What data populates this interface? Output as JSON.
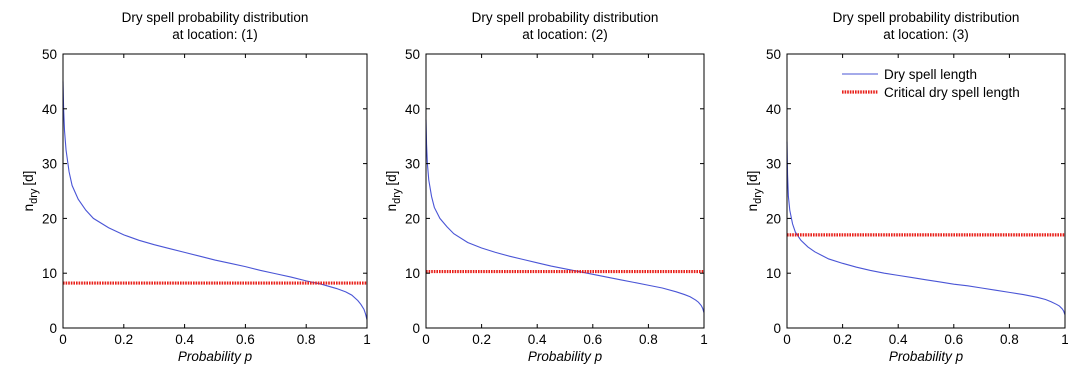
{
  "chart_data": [
    {
      "type": "line",
      "title": [
        "Dry spell probability distribution",
        "at location:   (1)"
      ],
      "xlabel": "Probability p",
      "ylabel": {
        "main": "n",
        "sub": "dry",
        "unit": "[d]"
      },
      "xlim": [
        0,
        1
      ],
      "ylim": [
        0,
        50
      ],
      "xticks": [
        0,
        0.2,
        0.4,
        0.6,
        0.8,
        1
      ],
      "xtick_labels": [
        "0",
        "0.2",
        "0.4",
        "0.6",
        "0.8",
        "1"
      ],
      "yticks": [
        0,
        10,
        20,
        30,
        40,
        50
      ],
      "ytick_labels": [
        "0",
        "10",
        "20",
        "30",
        "40",
        "50"
      ],
      "series": [
        {
          "kind": "curve",
          "color": "#4a55d6",
          "x": [
            0,
            0.002,
            0.005,
            0.01,
            0.02,
            0.03,
            0.05,
            0.075,
            0.1,
            0.15,
            0.2,
            0.25,
            0.3,
            0.35,
            0.4,
            0.45,
            0.5,
            0.55,
            0.6,
            0.65,
            0.7,
            0.75,
            0.8,
            0.85,
            0.9,
            0.93,
            0.95,
            0.97,
            0.98,
            0.99,
            0.995,
            1.0
          ],
          "y": [
            45,
            40,
            36,
            32.5,
            28.5,
            26,
            23.5,
            21.5,
            20,
            18.3,
            17,
            16,
            15.2,
            14.5,
            13.8,
            13.1,
            12.4,
            11.8,
            11.2,
            10.5,
            9.9,
            9.3,
            8.6,
            8.0,
            7.2,
            6.6,
            6.0,
            5.0,
            4.3,
            3.4,
            2.6,
            1.5
          ]
        },
        {
          "kind": "hline",
          "color": "#e8201a",
          "y": 8.2
        }
      ]
    },
    {
      "type": "line",
      "title": [
        "Dry spell probability distribution",
        "at location:   (2)"
      ],
      "xlabel": "Probability p",
      "ylabel": {
        "main": "n",
        "sub": "dry",
        "unit": "[d]"
      },
      "xlim": [
        0,
        1
      ],
      "ylim": [
        0,
        50
      ],
      "xticks": [
        0,
        0.2,
        0.4,
        0.6,
        0.8,
        1
      ],
      "xtick_labels": [
        "0",
        "0.2",
        "0.4",
        "0.6",
        "0.8",
        "1"
      ],
      "yticks": [
        0,
        10,
        20,
        30,
        40,
        50
      ],
      "ytick_labels": [
        "0",
        "10",
        "20",
        "30",
        "40",
        "50"
      ],
      "series": [
        {
          "kind": "curve",
          "color": "#4a55d6",
          "x": [
            0,
            0.002,
            0.005,
            0.01,
            0.02,
            0.03,
            0.05,
            0.075,
            0.1,
            0.15,
            0.2,
            0.25,
            0.3,
            0.35,
            0.4,
            0.45,
            0.5,
            0.55,
            0.6,
            0.65,
            0.7,
            0.75,
            0.8,
            0.85,
            0.9,
            0.93,
            0.95,
            0.97,
            0.98,
            0.99,
            0.995,
            1.0
          ],
          "y": [
            38,
            33.5,
            30,
            27,
            24,
            22,
            20,
            18.5,
            17.2,
            15.6,
            14.6,
            13.8,
            13.1,
            12.5,
            11.9,
            11.3,
            10.8,
            10.3,
            9.8,
            9.3,
            8.8,
            8.3,
            7.8,
            7.3,
            6.6,
            6.1,
            5.7,
            5.1,
            4.7,
            4.1,
            3.6,
            2.8
          ]
        },
        {
          "kind": "hline",
          "color": "#e8201a",
          "y": 10.3
        }
      ]
    },
    {
      "type": "line",
      "title": [
        "Dry spell probability distribution",
        "at location:   (3)"
      ],
      "xlabel": "Probability p",
      "ylabel": {
        "main": "n",
        "sub": "dry",
        "unit": "[d]"
      },
      "xlim": [
        0,
        1
      ],
      "ylim": [
        0,
        50
      ],
      "xticks": [
        0,
        0.2,
        0.4,
        0.6,
        0.8,
        1
      ],
      "xtick_labels": [
        "0",
        "0.2",
        "0.4",
        "0.6",
        "0.8",
        "1"
      ],
      "yticks": [
        0,
        10,
        20,
        30,
        40,
        50
      ],
      "ytick_labels": [
        "0",
        "10",
        "20",
        "30",
        "40",
        "50"
      ],
      "legend": {
        "placement": "top-right",
        "entries": [
          "Dry spell length",
          "Critical dry spell length"
        ]
      },
      "series": [
        {
          "kind": "curve",
          "name": "Dry spell length",
          "color": "#4a55d6",
          "x": [
            0,
            0.002,
            0.005,
            0.01,
            0.02,
            0.03,
            0.05,
            0.075,
            0.1,
            0.15,
            0.2,
            0.25,
            0.3,
            0.35,
            0.4,
            0.45,
            0.5,
            0.55,
            0.6,
            0.65,
            0.7,
            0.75,
            0.8,
            0.85,
            0.9,
            0.93,
            0.95,
            0.97,
            0.98,
            0.99,
            0.995,
            1.0
          ],
          "y": [
            34,
            28,
            24,
            21.5,
            19,
            17.5,
            16,
            14.8,
            13.9,
            12.6,
            11.8,
            11.1,
            10.5,
            10.0,
            9.6,
            9.2,
            8.8,
            8.4,
            8.0,
            7.7,
            7.3,
            6.9,
            6.5,
            6.1,
            5.6,
            5.2,
            4.8,
            4.3,
            4.0,
            3.5,
            3.1,
            2.4
          ]
        },
        {
          "kind": "hline",
          "name": "Critical dry spell length",
          "color": "#e8201a",
          "y": 17.0
        }
      ]
    }
  ]
}
